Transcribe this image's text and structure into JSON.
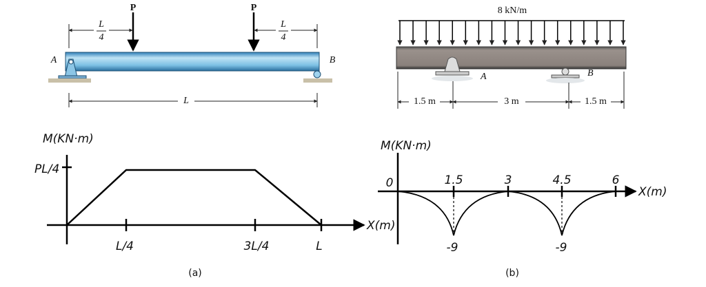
{
  "panel_a": {
    "beam": {
      "load_left": "P",
      "load_right": "P",
      "dim_left_num": "L",
      "dim_left_den": "4",
      "dim_right_num": "L",
      "dim_right_den": "4",
      "support_left": "A",
      "support_right": "B",
      "span": "L"
    },
    "moment": {
      "y_label": "M(KN·m)",
      "y_tick": "PL/4",
      "x_ticks": [
        "L/4",
        "3L/4",
        "L"
      ],
      "x_label": "X(m)"
    },
    "caption": "(a)"
  },
  "panel_b": {
    "beam": {
      "load": "8 kN/m",
      "support_left": "A",
      "support_right": "B",
      "dims": [
        "1.5 m",
        "3 m",
        "1.5 m"
      ]
    },
    "moment": {
      "y_label": "M(KN·m)",
      "origin": "0",
      "x_ticks": [
        "1.5",
        "3",
        "4.5",
        "6"
      ],
      "x_label": "X(m)",
      "minima": [
        "-9",
        "-9"
      ]
    },
    "caption": "(b)"
  }
}
